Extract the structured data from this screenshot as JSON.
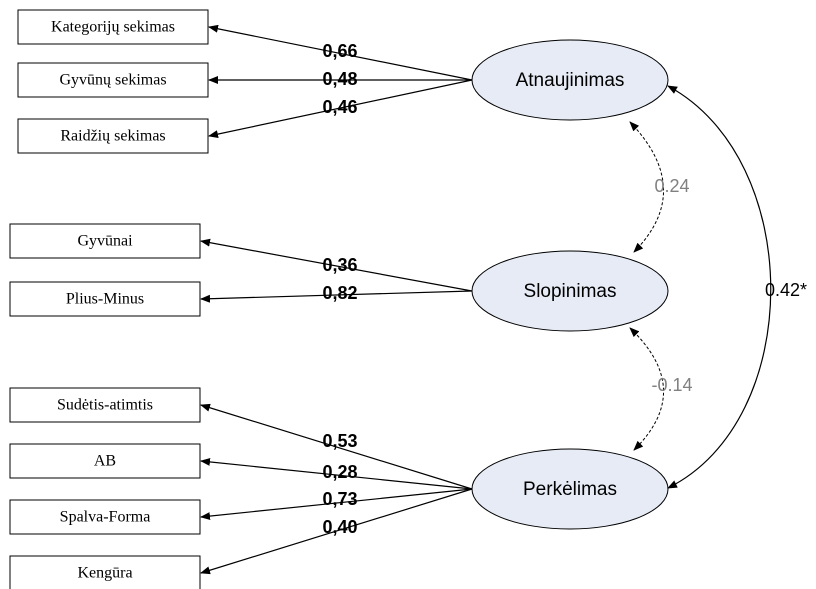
{
  "factors": [
    {
      "label": "Atnaujinimas",
      "loadings": [
        {
          "indicator": "Kategorijų sekimas",
          "value": "0,66"
        },
        {
          "indicator": "Gyvūnų sekimas",
          "value": "0,48"
        },
        {
          "indicator": "Raidžių sekimas",
          "value": "0,46"
        }
      ]
    },
    {
      "label": "Slopinimas",
      "loadings": [
        {
          "indicator": "Gyvūnai",
          "value": "0,36"
        },
        {
          "indicator": "Plius-Minus",
          "value": "0,82"
        }
      ]
    },
    {
      "label": "Perkėlimas",
      "loadings": [
        {
          "indicator": "Sudėtis-atimtis",
          "value": "0,53"
        },
        {
          "indicator": "AB",
          "value": "0,28"
        },
        {
          "indicator": "Spalva-Forma",
          "value": "0,73"
        },
        {
          "indicator": "Kengūra",
          "value": "0,40"
        }
      ]
    }
  ],
  "correlations": [
    {
      "label": "0.24"
    },
    {
      "label": "-0.14"
    },
    {
      "label": "0.42*"
    }
  ]
}
